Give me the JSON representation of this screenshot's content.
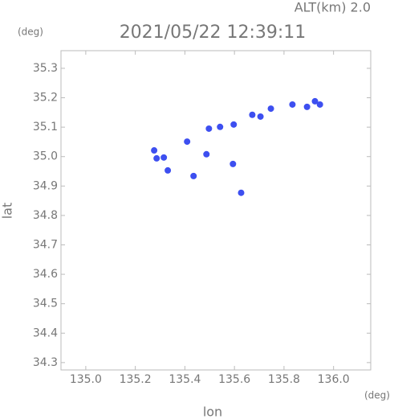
{
  "chart_data": {
    "type": "scatter",
    "title": "2021/05/22 12:39:11",
    "annotation": "ALT(km) 2.0",
    "y_unit": "(deg)",
    "x_unit": "(deg)",
    "xlabel": "lon",
    "ylabel": "lat",
    "color": "#3d4ff0",
    "x": [
      135.276,
      135.286,
      135.315,
      135.331,
      135.409,
      135.435,
      135.487,
      135.497,
      135.542,
      135.597,
      135.594,
      135.627,
      135.672,
      135.705,
      135.747,
      135.834,
      135.893,
      135.925,
      135.945
    ],
    "values": [
      35.021,
      34.994,
      34.997,
      34.953,
      35.051,
      34.934,
      35.008,
      35.095,
      35.101,
      35.109,
      34.975,
      34.877,
      35.142,
      35.136,
      35.163,
      35.177,
      35.169,
      35.188,
      35.177
    ],
    "xlim": [
      134.9,
      136.15
    ],
    "ylim": [
      34.275,
      35.36
    ],
    "xticks": [
      {
        "value": 135.0,
        "label": "135.0"
      },
      135.2,
      135.4,
      135.6,
      135.8,
      {
        "value": 136.0,
        "label": "136.0"
      }
    ],
    "yticks": [
      35.3,
      35.2,
      35.1,
      {
        "value": 35.0,
        "label": "35.0"
      },
      34.9,
      34.8,
      34.7,
      34.6,
      34.5,
      34.4,
      34.3
    ]
  }
}
